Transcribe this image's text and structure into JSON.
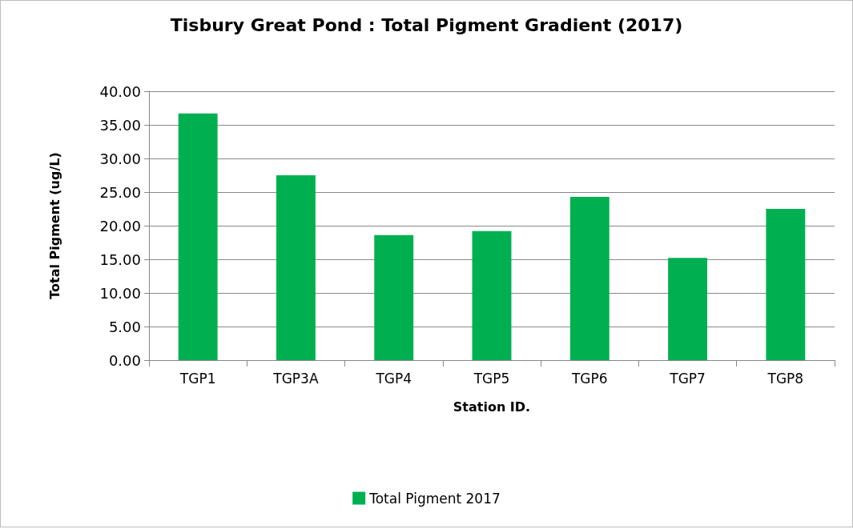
{
  "chart_data": {
    "type": "bar",
    "title": "Tisbury Great Pond : Total Pigment Gradient (2017)",
    "xlabel": "Station ID.",
    "ylabel": "Total Pigment (ug/L)",
    "categories": [
      "TGP1",
      "TGP3A",
      "TGP4",
      "TGP5",
      "TGP6",
      "TGP7",
      "TGP8"
    ],
    "series": [
      {
        "name": "Total Pigment 2017",
        "color": "#00b050",
        "values": [
          36.7,
          27.5,
          18.6,
          19.2,
          24.3,
          15.2,
          22.5
        ]
      }
    ],
    "ylim": [
      0,
      40
    ],
    "yticks": [
      {
        "value": 0,
        "label": "0.00"
      },
      {
        "value": 5,
        "label": "5.00"
      },
      {
        "value": 10,
        "label": "10.00"
      },
      {
        "value": 15,
        "label": "15.00"
      },
      {
        "value": 20,
        "label": "20.00"
      },
      {
        "value": 25,
        "label": "25.00"
      },
      {
        "value": 30,
        "label": "30.00"
      },
      {
        "value": 35,
        "label": "35.00"
      },
      {
        "value": 40,
        "label": "40.00"
      }
    ],
    "grid": "y",
    "legend": "bottom"
  }
}
